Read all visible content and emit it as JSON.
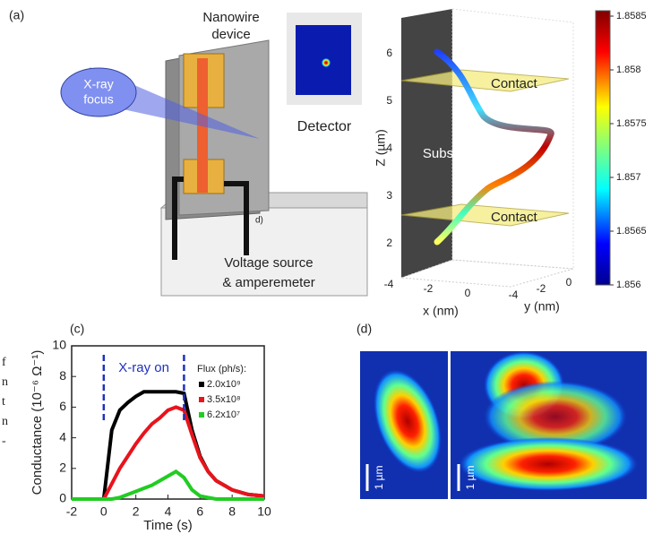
{
  "panel_labels": [
    "(a)",
    "(c)",
    "(d)"
  ],
  "illustration": {
    "device_label_lines": [
      "Nanowire",
      "device"
    ],
    "xray_label_lines": [
      "X-ray",
      "focus"
    ],
    "detector_label": "Detector",
    "source_label_lines": [
      "Voltage source",
      "& amperemeter"
    ],
    "stray_label": "d)"
  },
  "plot3d": {
    "substrate_label": "Substrate",
    "contact_labels": [
      "Contact",
      "Contact"
    ],
    "zlabel": "Z (µm)",
    "xlabel": "x (nm)",
    "ylabel": "y (nm)",
    "zticks": [
      2,
      3,
      4,
      5,
      6
    ],
    "xticks": [
      -4,
      -2,
      0
    ],
    "yticks": [
      -4,
      -2,
      0
    ],
    "colorbar": {
      "lim": [
        1.856,
        1.8585
      ],
      "ticks": [
        1.856,
        1.8565,
        1.857,
        1.8575,
        1.858,
        1.8585
      ]
    }
  },
  "chart_data": {
    "type": "line",
    "xlabel": "Time (s)",
    "ylabel": "Conductance (10⁻⁶ Ω⁻¹)",
    "annotation": {
      "text": "X-ray on",
      "x": [
        0,
        5
      ]
    },
    "legend_title": "Flux (ph/s):",
    "x": [
      -2,
      -1,
      0,
      0.5,
      1,
      1.5,
      2,
      2.5,
      3,
      3.5,
      4,
      4.5,
      5,
      5.5,
      6,
      6.5,
      7,
      8,
      9,
      10
    ],
    "series": [
      {
        "name": "2.0x10⁹",
        "color": "#000000",
        "values": [
          0,
          0,
          0,
          4.5,
          5.8,
          6.3,
          6.7,
          7,
          7,
          7,
          7,
          7,
          6.9,
          4.5,
          2.8,
          1.8,
          1.2,
          0.6,
          0.3,
          0.2
        ]
      },
      {
        "name": "3.5x10⁸",
        "color": "#e8141c",
        "values": [
          0,
          0,
          0,
          1,
          2,
          2.8,
          3.6,
          4.3,
          4.9,
          5.3,
          5.8,
          6,
          5.8,
          4.2,
          2.7,
          1.8,
          1.2,
          0.6,
          0.3,
          0.2
        ]
      },
      {
        "name": "6.2x10⁷",
        "color": "#22cc22",
        "values": [
          0,
          0,
          0,
          0,
          0.1,
          0.3,
          0.5,
          0.7,
          0.9,
          1.2,
          1.5,
          1.8,
          1.4,
          0.6,
          0.2,
          0.1,
          0,
          0,
          0,
          0
        ]
      }
    ],
    "xlim": [
      -2,
      10
    ],
    "ylim": [
      0,
      10
    ],
    "xticks": [
      -2,
      0,
      2,
      4,
      6,
      8,
      10
    ],
    "yticks": [
      0,
      2,
      4,
      6,
      8,
      10
    ]
  },
  "maps": {
    "scale_labels": [
      "1 µm",
      "1 µm"
    ]
  },
  "margin_fragments": [
    "f",
    "n",
    "t",
    "n",
    "-"
  ]
}
